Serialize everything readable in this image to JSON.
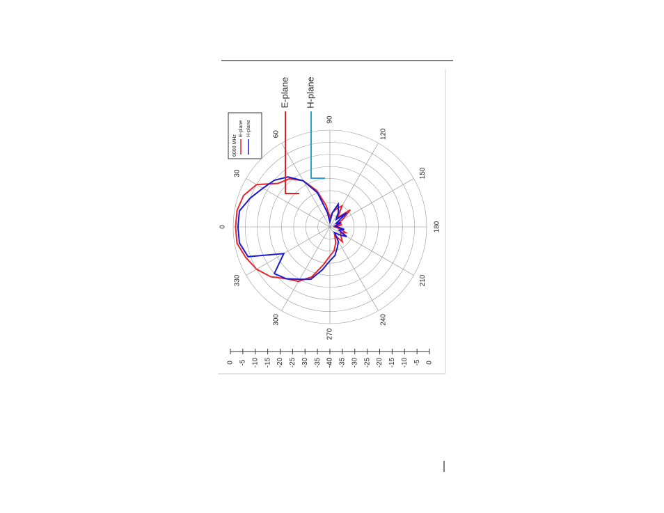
{
  "chart_data": {
    "type": "polar",
    "legend_title": "6000 MHz",
    "annotations": [
      {
        "text": "E-plane",
        "color": "#e02020"
      },
      {
        "text": "H-plane",
        "color": "#2a9fd0"
      }
    ],
    "theta": [
      0,
      10,
      20,
      30,
      40,
      50,
      60,
      70,
      80,
      90,
      100,
      110,
      120,
      130,
      140,
      150,
      160,
      170,
      180,
      190,
      200,
      210,
      220,
      230,
      240,
      250,
      260,
      270,
      280,
      290,
      300,
      310,
      320,
      330,
      340,
      350
    ],
    "series": [
      {
        "name": "E-plane",
        "color": "#e8262b",
        "values": [
          -1,
          -1,
          -2,
          -5,
          -12,
          -14,
          -18,
          -24,
          -31,
          -36,
          -34,
          -32,
          -30,
          -35,
          -29,
          -34,
          -37,
          -35,
          -38,
          -36,
          -33,
          -35,
          -34,
          -32,
          -36,
          -33,
          -30,
          -28,
          -24,
          -18,
          -14,
          -12,
          -8,
          -5,
          -3,
          -1
        ]
      },
      {
        "name": "H-plane",
        "color": "#1a1ad0",
        "values": [
          -2,
          -2,
          -5,
          -8,
          -10,
          -13,
          -18,
          -25,
          -34,
          -38,
          -34,
          -30,
          -33,
          -36,
          -31,
          -37,
          -35,
          -38,
          -37,
          -34,
          -36,
          -32,
          -35,
          -37,
          -33,
          -31,
          -28,
          -26,
          -22,
          -17,
          -15,
          -12,
          -10,
          -18,
          -4,
          -2
        ]
      }
    ],
    "rlim": [
      -40,
      0
    ],
    "rticks": [
      0,
      -5,
      -10,
      -15,
      -20,
      -25,
      -30,
      -35,
      -40
    ],
    "thetaticks": [
      0,
      30,
      60,
      90,
      120,
      150,
      180,
      210,
      240,
      270,
      300,
      330
    ],
    "grid": true
  }
}
